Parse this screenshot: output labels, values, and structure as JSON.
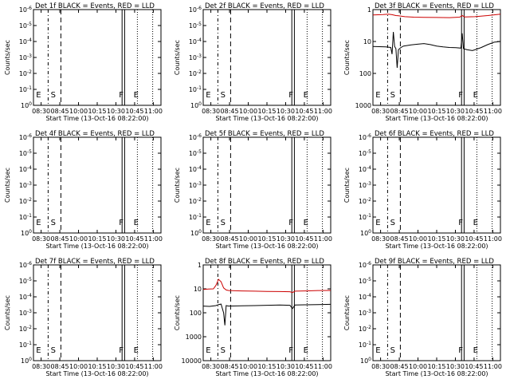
{
  "chart_data": [
    {
      "type": "line",
      "det": "1f",
      "title": "Det 1f BLACK = Events, RED = LLD",
      "xlabel": "Start Time (13-Oct-16 08:22:00)",
      "ylabel": "Counts/sec",
      "x_ticks": [
        "08:30",
        "08:45",
        "10:00",
        "10:15",
        "10:30",
        "10:45",
        "11:00"
      ],
      "y_ticks": [
        "10^0",
        "10^-1",
        "10^-2",
        "10^-3",
        "10^-4",
        "10^-5",
        "10^-6"
      ],
      "markers": [
        "E",
        "S",
        "F",
        "E"
      ],
      "series": []
    },
    {
      "type": "line",
      "det": "2f",
      "title": "Det 2f BLACK = Events, RED = LLD",
      "xlabel": "Start Time (13-Oct-16 08:22:00)",
      "ylabel": "Counts/sec",
      "x_ticks": [
        "08:30",
        "08:45",
        "10:00",
        "10:15",
        "10:30",
        "10:45",
        "11:00"
      ],
      "y_ticks": [
        "10^0",
        "10^-1",
        "10^-2",
        "10^-3",
        "10^-4",
        "10^-5",
        "10^-6"
      ],
      "markers": [
        "E",
        "S",
        "F",
        "E"
      ],
      "series": []
    },
    {
      "type": "line",
      "det": "3f",
      "title": "Det 3f BLACK = Events, RED = LLD",
      "xlabel": "Start Time (13-Oct-16 08:22:00)",
      "ylabel": "Counts/sec",
      "x_ticks": [
        "08:30",
        "08:45",
        "10:00",
        "10:15",
        "10:30",
        "10:45",
        "11:00"
      ],
      "y_ticks": [
        "1000",
        "100",
        "10",
        "1"
      ],
      "markers": [
        "E",
        "S",
        "F",
        "E"
      ],
      "series": [
        {
          "color": "#cc0000",
          "x": [
            0.0,
            0.08,
            0.12,
            0.15,
            0.18,
            0.2,
            0.25,
            0.32,
            0.4,
            0.5,
            0.6,
            0.68,
            0.7,
            0.72,
            0.8,
            0.9,
            1.0
          ],
          "y": [
            680,
            700,
            720,
            690,
            650,
            640,
            600,
            580,
            570,
            565,
            560,
            580,
            650,
            590,
            600,
            650,
            720
          ]
        },
        {
          "color": "#000000",
          "x": [
            0.0,
            0.1,
            0.14,
            0.15,
            0.16,
            0.17,
            0.18,
            0.19,
            0.2,
            0.21,
            0.22,
            0.24,
            0.3,
            0.35,
            0.4,
            0.45,
            0.5,
            0.55,
            0.6,
            0.65,
            0.69,
            0.7,
            0.71,
            0.72,
            0.74,
            0.78,
            0.8,
            0.85,
            0.9,
            0.95,
            1.0
          ],
          "y": [
            70,
            68,
            65,
            40,
            200,
            70,
            60,
            15,
            55,
            60,
            65,
            72,
            78,
            82,
            86,
            80,
            72,
            68,
            65,
            64,
            62,
            180,
            60,
            58,
            55,
            52,
            55,
            65,
            80,
            95,
            100
          ]
        }
      ]
    },
    {
      "type": "line",
      "det": "4f",
      "title": "Det 4f BLACK = Events, RED = LLD",
      "xlabel": "Start Time (13-Oct-16 08:22:00)",
      "ylabel": "Counts/sec",
      "x_ticks": [
        "08:30",
        "08:45",
        "10:00",
        "10:15",
        "10:30",
        "10:45",
        "11:00"
      ],
      "y_ticks": [
        "10^0",
        "10^-1",
        "10^-2",
        "10^-3",
        "10^-4",
        "10^-5",
        "10^-6"
      ],
      "markers": [
        "E",
        "S",
        "F",
        "E"
      ],
      "series": []
    },
    {
      "type": "line",
      "det": "5f",
      "title": "Det 5f BLACK = Events, RED = LLD",
      "xlabel": "Start Time (13-Oct-16 08:22:00)",
      "ylabel": "Counts/sec",
      "x_ticks": [
        "08:30",
        "08:45",
        "10:00",
        "10:15",
        "10:30",
        "10:45",
        "11:00"
      ],
      "y_ticks": [
        "10^0",
        "10^-1",
        "10^-2",
        "10^-3",
        "10^-4",
        "10^-5",
        "10^-6"
      ],
      "markers": [
        "E",
        "S",
        "F",
        "E"
      ],
      "series": []
    },
    {
      "type": "line",
      "det": "6f",
      "title": "Det 6f BLACK = Events, RED = LLD",
      "xlabel": "Start Time (13-Oct-16 08:22:00)",
      "ylabel": "Counts/sec",
      "x_ticks": [
        "08:30",
        "08:45",
        "10:00",
        "10:15",
        "10:30",
        "10:45",
        "11:00"
      ],
      "y_ticks": [
        "10^0",
        "10^-1",
        "10^-2",
        "10^-3",
        "10^-4",
        "10^-5",
        "10^-6"
      ],
      "markers": [
        "E",
        "S",
        "F",
        "E"
      ],
      "series": []
    },
    {
      "type": "line",
      "det": "7f",
      "title": "Det 7f BLACK = Events, RED = LLD",
      "xlabel": "Start Time (13-Oct-16 08:22:00)",
      "ylabel": "Counts/sec",
      "x_ticks": [
        "08:30",
        "08:45",
        "10:00",
        "10:15",
        "10:30",
        "10:45",
        "11:00"
      ],
      "y_ticks": [
        "10^0",
        "10^-1",
        "10^-2",
        "10^-3",
        "10^-4",
        "10^-5",
        "10^-6"
      ],
      "markers": [
        "E",
        "S",
        "F",
        "E"
      ],
      "series": []
    },
    {
      "type": "line",
      "det": "8f",
      "title": "Det 8f BLACK = Events, RED = LLD",
      "xlabel": "Start Time (13-Oct-16 08:22:00)",
      "ylabel": "Counts/sec",
      "x_ticks": [
        "08:30",
        "08:45",
        "10:00",
        "10:15",
        "10:30",
        "10:45",
        "11:00"
      ],
      "y_ticks": [
        "10000",
        "1000",
        "100",
        "10",
        "1"
      ],
      "markers": [
        "E",
        "S",
        "F",
        "E"
      ],
      "series": [
        {
          "color": "#cc0000",
          "x": [
            0.0,
            0.04,
            0.08,
            0.1,
            0.12,
            0.14,
            0.16,
            0.18,
            0.2,
            0.3,
            0.4,
            0.5,
            0.6,
            0.68,
            0.7,
            0.72,
            0.8,
            0.9,
            1.0
          ],
          "y": [
            950,
            980,
            1000,
            1400,
            2500,
            2000,
            1100,
            900,
            850,
            820,
            800,
            780,
            770,
            760,
            700,
            800,
            820,
            850,
            860
          ]
        },
        {
          "color": "#000000",
          "x": [
            0.0,
            0.05,
            0.1,
            0.12,
            0.14,
            0.16,
            0.17,
            0.18,
            0.2,
            0.3,
            0.4,
            0.5,
            0.6,
            0.68,
            0.7,
            0.72,
            0.8,
            0.9,
            1.0
          ],
          "y": [
            190,
            185,
            200,
            220,
            230,
            100,
            30,
            200,
            190,
            195,
            200,
            205,
            210,
            205,
            150,
            210,
            215,
            220,
            225
          ]
        }
      ]
    },
    {
      "type": "line",
      "det": "9f",
      "title": "Det 9f BLACK = Events, RED = LLD",
      "xlabel": "Start Time (13-Oct-16 08:22:00)",
      "ylabel": "Counts/sec",
      "x_ticks": [
        "08:30",
        "08:45",
        "10:00",
        "10:15",
        "10:30",
        "10:45",
        "11:00"
      ],
      "y_ticks": [
        "10^0",
        "10^-1",
        "10^-2",
        "10^-3",
        "10^-4",
        "10^-5",
        "10^-6"
      ],
      "markers": [
        "E",
        "S",
        "F",
        "E"
      ],
      "series": []
    }
  ]
}
